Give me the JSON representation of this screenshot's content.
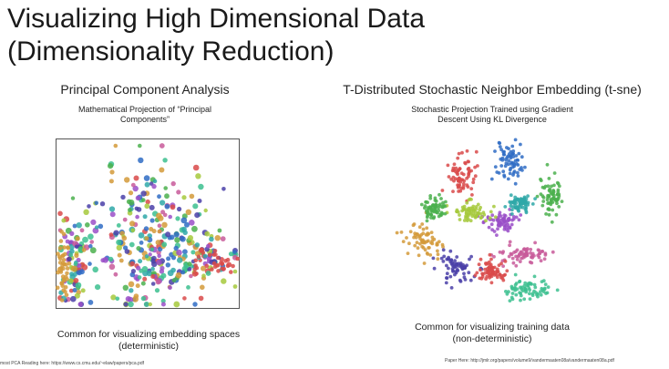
{
  "slide": {
    "title_line1": "Visualizing High Dimensional Data",
    "title_line2": "(Dimensionality Reduction)"
  },
  "left_panel": {
    "heading": "Principal Component Analysis",
    "subtitle_line1": "Mathematical Projection of “Principal",
    "subtitle_line2": "Components”",
    "caption_line1": "Common for visualizing embedding spaces",
    "caption_line2": "(deterministic)",
    "footer": "most PCA Reading here: https://www.cs.cmu.edu/~elaw/papers/pca.pdf"
  },
  "right_panel": {
    "heading": "T-Distributed Stochastic Neighbor Embedding (t-sne)",
    "subtitle_line1": "Stochastic Projection Trained using Gradient",
    "subtitle_line2": "Descent Using KL Divergence",
    "caption_line1": "Common for visualizing training data",
    "caption_line2": "(non-deterministic)",
    "footer": "Paper Here: http://jmlr.org/papers/volume9/vandermaaten08a/vandermaaten08a.pdf"
  },
  "colors": {
    "clusters": [
      "#d94a4a",
      "#2f6cc4",
      "#d49a3a",
      "#4bb04e",
      "#9a4fc8",
      "#2fa8a8",
      "#c85a9a",
      "#a6c93c",
      "#4a3fa8",
      "#3cbf8f"
    ]
  }
}
